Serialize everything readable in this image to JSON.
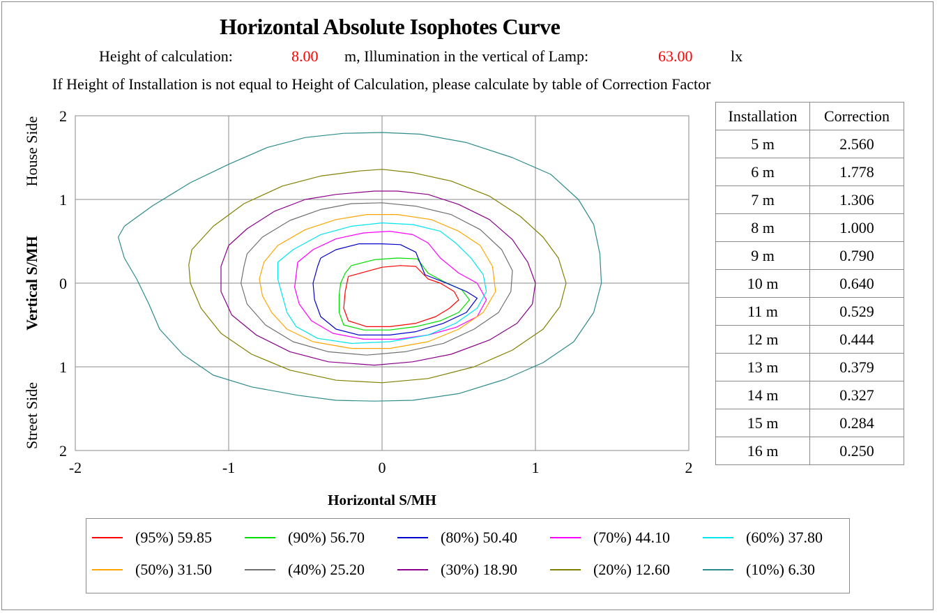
{
  "title": "Horizontal Absolute Isophotes Curve",
  "subtitle1": {
    "label_height": "Height of calculation:",
    "height_value": "8.00",
    "unit_height": "m, Illumination in the vertical of Lamp:",
    "lux_value": "63.00",
    "unit_lux": "lx"
  },
  "subtitle2": "If Height of Installation is not equal to Height of Calculation, please calculate by table of Correction Factor",
  "chart_data": {
    "type": "line",
    "title": "Horizontal Absolute Isophotes Curve",
    "xlabel": "Horizontal  S/MH",
    "ylabel": "Vertical  S/MH",
    "ylabel_top": "House Side",
    "ylabel_bottom": "Street Side",
    "xlim": [
      -2,
      2
    ],
    "ylim": [
      -2,
      2
    ],
    "x_ticks": [
      "-2",
      "-1",
      "0",
      "1",
      "2"
    ],
    "y_ticks": [
      "2",
      "1",
      "0",
      "1",
      "2"
    ],
    "grid": true,
    "series": [
      {
        "name": "(95%) 59.85",
        "color": "#ff0000",
        "x": [
          -0.22,
          -0.1,
          0.0,
          0.12,
          0.22,
          0.3,
          0.38,
          0.47,
          0.5,
          0.44,
          0.35,
          0.22,
          0.05,
          -0.1,
          -0.22,
          -0.25,
          -0.24,
          -0.22
        ],
        "y": [
          0.08,
          0.14,
          0.19,
          0.21,
          0.2,
          0.05,
          0.0,
          -0.1,
          -0.2,
          -0.3,
          -0.4,
          -0.48,
          -0.52,
          -0.52,
          -0.45,
          -0.3,
          -0.1,
          0.08
        ]
      },
      {
        "name": "(90%) 56.70",
        "color": "#00dd00",
        "x": [
          -0.2,
          -0.05,
          0.1,
          0.23,
          0.3,
          0.4,
          0.52,
          0.57,
          0.5,
          0.38,
          0.22,
          0.05,
          -0.12,
          -0.25,
          -0.28,
          -0.28,
          -0.27,
          -0.24,
          -0.2
        ],
        "y": [
          0.21,
          0.28,
          0.3,
          0.29,
          0.12,
          0.02,
          -0.08,
          -0.2,
          -0.35,
          -0.45,
          -0.52,
          -0.56,
          -0.56,
          -0.5,
          -0.35,
          -0.15,
          0.0,
          0.12,
          0.21
        ]
      },
      {
        "name": "(80%) 50.40",
        "color": "#0000cc",
        "x": [
          -0.4,
          -0.3,
          -0.15,
          0.0,
          0.12,
          0.22,
          0.28,
          0.42,
          0.55,
          0.62,
          0.55,
          0.4,
          0.22,
          0.05,
          -0.15,
          -0.3,
          -0.4,
          -0.44,
          -0.45,
          -0.42,
          -0.4
        ],
        "y": [
          0.3,
          0.4,
          0.47,
          0.47,
          0.46,
          0.37,
          0.1,
          0.0,
          -0.1,
          -0.18,
          -0.35,
          -0.48,
          -0.58,
          -0.62,
          -0.62,
          -0.55,
          -0.4,
          -0.2,
          0.0,
          0.2,
          0.3
        ]
      },
      {
        "name": "(70%) 44.10",
        "color": "#ff00ff",
        "x": [
          -0.55,
          -0.45,
          -0.3,
          -0.12,
          0.05,
          0.2,
          0.3,
          0.38,
          0.5,
          0.62,
          0.68,
          0.62,
          0.48,
          0.3,
          0.1,
          -0.12,
          -0.32,
          -0.46,
          -0.54,
          -0.57,
          -0.56,
          -0.55
        ],
        "y": [
          0.25,
          0.4,
          0.53,
          0.6,
          0.62,
          0.58,
          0.48,
          0.3,
          0.12,
          0.0,
          -0.2,
          -0.4,
          -0.53,
          -0.62,
          -0.67,
          -0.67,
          -0.6,
          -0.45,
          -0.25,
          -0.05,
          0.1,
          0.25
        ]
      },
      {
        "name": "(60%) 37.80",
        "color": "#00e5ee",
        "x": [
          -0.68,
          -0.58,
          -0.4,
          -0.2,
          0.0,
          0.2,
          0.38,
          0.48,
          0.58,
          0.66,
          0.68,
          0.62,
          0.48,
          0.3,
          0.05,
          -0.2,
          -0.42,
          -0.56,
          -0.62,
          -0.65,
          -0.68,
          -0.68
        ],
        "y": [
          0.25,
          0.4,
          0.58,
          0.68,
          0.72,
          0.7,
          0.62,
          0.48,
          0.3,
          0.1,
          -0.1,
          -0.3,
          -0.48,
          -0.62,
          -0.7,
          -0.72,
          -0.66,
          -0.52,
          -0.35,
          -0.15,
          0.05,
          0.25
        ]
      },
      {
        "name": "(50%) 31.50",
        "color": "#ffa500",
        "x": [
          -0.77,
          -0.68,
          -0.5,
          -0.3,
          -0.1,
          0.1,
          0.32,
          0.5,
          0.64,
          0.72,
          0.74,
          0.66,
          0.5,
          0.3,
          0.05,
          -0.2,
          -0.45,
          -0.62,
          -0.72,
          -0.78,
          -0.8,
          -0.77
        ],
        "y": [
          0.25,
          0.45,
          0.64,
          0.76,
          0.82,
          0.82,
          0.76,
          0.62,
          0.45,
          0.2,
          -0.1,
          -0.35,
          -0.55,
          -0.7,
          -0.78,
          -0.78,
          -0.7,
          -0.55,
          -0.35,
          -0.15,
          0.05,
          0.25
        ]
      },
      {
        "name": "(40%) 25.20",
        "color": "#707070",
        "x": [
          -0.88,
          -0.78,
          -0.6,
          -0.4,
          -0.2,
          0.0,
          0.22,
          0.45,
          0.64,
          0.78,
          0.85,
          0.84,
          0.76,
          0.6,
          0.4,
          0.15,
          -0.1,
          -0.35,
          -0.58,
          -0.76,
          -0.88,
          -0.92,
          -0.9,
          -0.88
        ],
        "y": [
          0.35,
          0.55,
          0.75,
          0.88,
          0.95,
          0.96,
          0.92,
          0.82,
          0.64,
          0.4,
          0.15,
          -0.1,
          -0.35,
          -0.55,
          -0.72,
          -0.82,
          -0.86,
          -0.82,
          -0.7,
          -0.5,
          -0.25,
          0.0,
          0.2,
          0.35
        ]
      },
      {
        "name": "(30%) 18.90",
        "color": "#8b008b",
        "x": [
          -1.0,
          -0.88,
          -0.7,
          -0.5,
          -0.3,
          -0.05,
          0.1,
          0.3,
          0.5,
          0.7,
          0.85,
          0.95,
          1.0,
          0.98,
          0.88,
          0.7,
          0.45,
          0.2,
          -0.05,
          -0.35,
          -0.6,
          -0.82,
          -0.98,
          -1.05,
          -1.05,
          -1.0
        ],
        "y": [
          0.45,
          0.65,
          0.86,
          1.0,
          1.06,
          1.1,
          1.1,
          1.06,
          0.94,
          0.76,
          0.52,
          0.25,
          0.0,
          -0.25,
          -0.48,
          -0.68,
          -0.85,
          -0.94,
          -0.98,
          -0.94,
          -0.82,
          -0.62,
          -0.38,
          -0.1,
          0.2,
          0.45
        ]
      },
      {
        "name": "(20%) 12.60",
        "color": "#808000",
        "x": [
          -1.24,
          -1.1,
          -0.9,
          -0.65,
          -0.4,
          -0.15,
          0.0,
          0.2,
          0.45,
          0.7,
          0.9,
          1.05,
          1.15,
          1.2,
          1.16,
          1.05,
          0.85,
          0.6,
          0.3,
          0.0,
          -0.3,
          -0.6,
          -0.85,
          -1.05,
          -1.18,
          -1.25,
          -1.26,
          -1.24
        ],
        "y": [
          0.4,
          0.68,
          0.95,
          1.16,
          1.28,
          1.34,
          1.36,
          1.32,
          1.22,
          1.04,
          0.8,
          0.55,
          0.3,
          0.0,
          -0.28,
          -0.55,
          -0.8,
          -1.0,
          -1.14,
          -1.19,
          -1.16,
          -1.04,
          -0.85,
          -0.6,
          -0.3,
          0.0,
          0.22,
          0.4
        ]
      },
      {
        "name": "(10%) 6.30",
        "color": "#2e8b8b",
        "x": [
          -1.68,
          -1.5,
          -1.25,
          -1.0,
          -0.75,
          -0.5,
          -0.25,
          0.0,
          0.25,
          0.55,
          0.85,
          1.1,
          1.28,
          1.38,
          1.42,
          1.43,
          1.38,
          1.25,
          1.05,
          0.8,
          0.5,
          0.2,
          -0.05,
          -0.3,
          -0.55,
          -0.85,
          -1.1,
          -1.3,
          -1.45,
          -1.52,
          -1.6,
          -1.68,
          -1.72,
          -1.68
        ],
        "y": [
          0.68,
          0.92,
          1.2,
          1.42,
          1.62,
          1.74,
          1.79,
          1.8,
          1.78,
          1.68,
          1.5,
          1.3,
          1.0,
          0.7,
          0.35,
          0.0,
          -0.35,
          -0.7,
          -0.95,
          -1.15,
          -1.32,
          -1.4,
          -1.41,
          -1.4,
          -1.34,
          -1.24,
          -1.1,
          -0.85,
          -0.55,
          -0.25,
          0.05,
          0.3,
          0.55,
          0.68
        ]
      }
    ]
  },
  "correction_table": {
    "headers": [
      "Installation",
      "Correction"
    ],
    "rows": [
      [
        "5 m",
        "2.560"
      ],
      [
        "6 m",
        "1.778"
      ],
      [
        "7 m",
        "1.306"
      ],
      [
        "8 m",
        "1.000"
      ],
      [
        "9 m",
        "0.790"
      ],
      [
        "10 m",
        "0.640"
      ],
      [
        "11 m",
        "0.529"
      ],
      [
        "12 m",
        "0.444"
      ],
      [
        "13 m",
        "0.379"
      ],
      [
        "14 m",
        "0.327"
      ],
      [
        "15 m",
        "0.284"
      ],
      [
        "16 m",
        "0.250"
      ]
    ]
  }
}
